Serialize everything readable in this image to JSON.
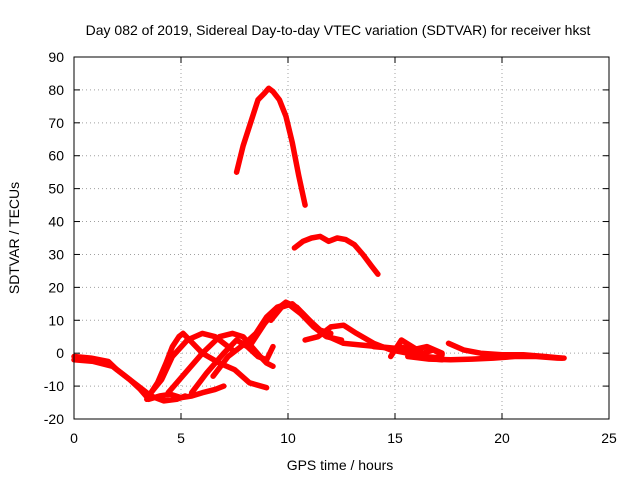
{
  "chart_data": {
    "type": "line",
    "title": "Day 082 of 2019, Sidereal Day-to-day VTEC variation (SDTVAR) for receiver hkst",
    "xlabel": "GPS time / hours",
    "ylabel": "SDTVAR / TECUs",
    "xlim": [
      0,
      25
    ],
    "ylim": [
      -20,
      90
    ],
    "xticks": [
      0,
      5,
      10,
      15,
      20,
      25
    ],
    "yticks": [
      -20,
      -10,
      0,
      10,
      20,
      30,
      40,
      50,
      60,
      70,
      80,
      90
    ],
    "grid": true,
    "legend": "none",
    "color": "#ff0000",
    "series": [
      {
        "name": "arc-1",
        "x": [
          0,
          0.8,
          1.6,
          2.0,
          2.6,
          3.1,
          3.5,
          4.0,
          4.5,
          5.0,
          5.5,
          6.0,
          6.6,
          7.0
        ],
        "y": [
          -1,
          -1.5,
          -2.5,
          -5,
          -8,
          -11,
          -14,
          -13,
          -12.5,
          -13.5,
          -13,
          -12,
          -11,
          -10
        ]
      },
      {
        "name": "arc-2",
        "x": [
          0,
          0.9,
          1.8,
          2.4,
          3.0,
          3.6,
          4.2,
          4.8,
          5.2
        ],
        "y": [
          -2,
          -2.5,
          -4,
          -7,
          -10,
          -13,
          -14.5,
          -14,
          -13
        ]
      },
      {
        "name": "arc-3",
        "x": [
          3.4,
          3.9,
          4.3,
          4.6,
          4.9,
          5.1,
          5.4,
          6.0,
          6.8,
          7.5,
          8.2,
          9.0
        ],
        "y": [
          -14,
          -9,
          -3,
          2,
          5,
          6,
          4,
          0,
          -3,
          -5,
          -9,
          -10.5
        ]
      },
      {
        "name": "arc-4",
        "x": [
          3.6,
          4.1,
          4.6,
          5.3,
          6.0,
          6.6,
          7.0,
          7.4
        ],
        "y": [
          -12,
          -8,
          -1,
          4,
          6,
          5,
          3,
          1
        ]
      },
      {
        "name": "arc-5",
        "x": [
          4.4,
          5.2,
          6.0,
          6.8,
          7.4,
          7.9,
          8.3,
          8.7,
          9.0,
          9.3
        ],
        "y": [
          -12,
          -6,
          0,
          5,
          6,
          5,
          2,
          -1,
          -3,
          -4
        ]
      },
      {
        "name": "arc-6",
        "x": [
          5.5,
          6.2,
          7.0,
          7.6,
          8.1,
          8.6,
          9.0,
          9.3
        ],
        "y": [
          -12,
          -6,
          0,
          4,
          2,
          -1,
          -2,
          2
        ]
      },
      {
        "name": "arc-7",
        "x": [
          6.5,
          7.2,
          8.0,
          8.5,
          9.0,
          9.5,
          10.0,
          10.6,
          11.2,
          11.8,
          12.5
        ],
        "y": [
          -7,
          -1,
          3,
          6,
          11,
          14,
          15,
          12,
          8,
          5,
          4
        ]
      },
      {
        "name": "arc-8",
        "x": [
          8.3,
          8.9,
          9.4,
          9.9,
          10.4,
          11.0,
          11.5,
          12.0
        ],
        "y": [
          3,
          9,
          13,
          15.5,
          14,
          10,
          7,
          6
        ]
      },
      {
        "name": "arc-9",
        "x": [
          9.2,
          9.7,
          10.2,
          10.7,
          11.3,
          11.9,
          12.6,
          13.4,
          14.2,
          15.0,
          15.8
        ],
        "y": [
          10,
          14,
          15,
          12,
          8,
          5,
          3,
          2.5,
          2,
          1.5,
          0.5
        ]
      },
      {
        "name": "arc-10",
        "x": [
          10.8,
          11.4,
          12.0,
          12.6,
          13.2,
          14.0,
          14.8,
          15.6,
          16.4,
          17.2
        ],
        "y": [
          4,
          5,
          8,
          8.5,
          6,
          3,
          1,
          0,
          -1.5,
          -2
        ]
      },
      {
        "name": "arc-11",
        "x": [
          14.0,
          14.8,
          15.6,
          16.4,
          17.2
        ],
        "y": [
          2,
          1.5,
          0,
          -1,
          -1.5
        ]
      },
      {
        "name": "arc-12",
        "x": [
          14.8,
          15.3,
          15.8,
          16.3,
          16.8,
          17.2
        ],
        "y": [
          -1,
          4,
          2,
          0,
          1,
          -0.5
        ]
      },
      {
        "name": "arc-13",
        "x": [
          15.2,
          15.8,
          16.5,
          17.2
        ],
        "y": [
          2,
          1,
          2,
          0
        ]
      },
      {
        "name": "arc-14",
        "x": [
          15.6,
          16.6,
          17.6,
          18.6,
          19.6,
          20.6,
          21.6,
          22.6,
          22.9
        ],
        "y": [
          -1,
          -1.8,
          -2,
          -1.8,
          -1.5,
          -1,
          -1,
          -1.5,
          -1.5
        ]
      },
      {
        "name": "arc-15",
        "x": [
          17.5,
          18.2,
          19.0,
          20.0,
          21.0,
          22.0,
          22.8
        ],
        "y": [
          3,
          1,
          0,
          -0.5,
          -0.5,
          -1,
          -1.5
        ]
      },
      {
        "name": "arc-16",
        "x": [
          7.6,
          7.9,
          8.2,
          8.6,
          8.9,
          9.1,
          9.3,
          9.6,
          9.9,
          10.2,
          10.5,
          10.8
        ],
        "y": [
          55,
          63,
          69,
          77,
          79,
          80.5,
          79.5,
          77,
          72,
          64,
          54,
          45
        ]
      },
      {
        "name": "arc-17",
        "x": [
          10.3,
          10.7,
          11.1,
          11.5,
          11.9,
          12.3,
          12.7,
          13.1,
          13.5,
          13.9,
          14.2
        ],
        "y": [
          32,
          34,
          35,
          35.5,
          34,
          35,
          34.5,
          33,
          30,
          26.5,
          24
        ]
      }
    ]
  }
}
